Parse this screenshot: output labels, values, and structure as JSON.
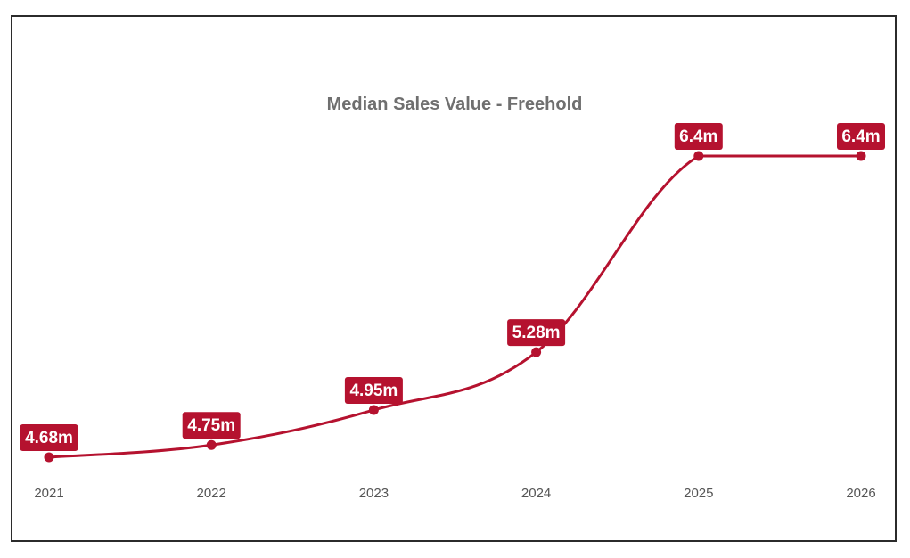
{
  "colors": {
    "series": "#b5122f",
    "title": "#6f6f6f",
    "tick": "#555555",
    "label_text": "#ffffff"
  },
  "chart_data": {
    "type": "line",
    "title": "Median Sales Value - Freehold",
    "xlabel": "",
    "ylabel": "",
    "grid": false,
    "legend": "none",
    "categories": [
      "2021",
      "2022",
      "2023",
      "2024",
      "2025",
      "2026"
    ],
    "series": [
      {
        "name": "Median Sales Value - Freehold",
        "values": [
          4.68,
          4.75,
          4.95,
          5.28,
          6.4,
          6.4
        ],
        "labels": [
          "4.68m",
          "4.75m",
          "4.95m",
          "5.28m",
          "6.4m",
          "6.4m"
        ]
      }
    ],
    "ylim": [
      4.68,
      6.4
    ]
  }
}
